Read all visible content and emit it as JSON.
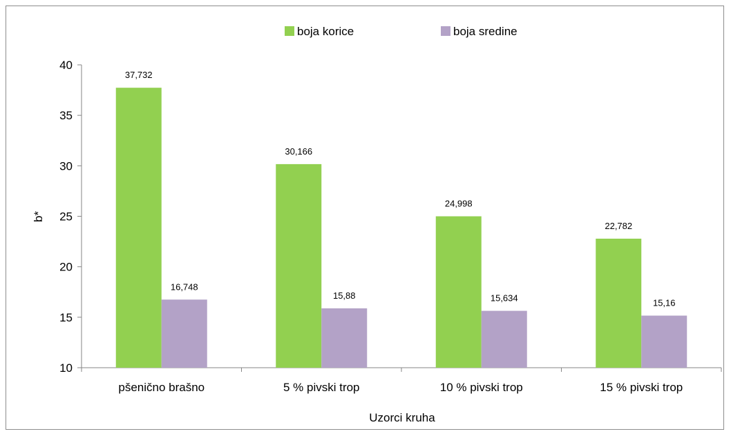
{
  "chart_data": {
    "type": "bar",
    "categories": [
      "pšenično brašno",
      "5 % pivski trop",
      "10 % pivski trop",
      "15 % pivski trop"
    ],
    "series": [
      {
        "name": "boja korice",
        "values": [
          37.732,
          30.166,
          24.998,
          22.782
        ],
        "labels": [
          "37,732",
          "30,166",
          "24,998",
          "22,782"
        ],
        "color": "#92d050"
      },
      {
        "name": "boja sredine",
        "values": [
          16.748,
          15.88,
          15.634,
          15.16
        ],
        "labels": [
          "16,748",
          "15,88",
          "15,634",
          "15,16"
        ],
        "color": "#b3a2c7"
      }
    ],
    "xlabel": "Uzorci kruha",
    "ylabel": "b*",
    "ylim": [
      10,
      40
    ],
    "yticks": [
      10,
      15,
      20,
      25,
      30,
      35,
      40
    ],
    "grid": false,
    "legend_position": "top"
  }
}
